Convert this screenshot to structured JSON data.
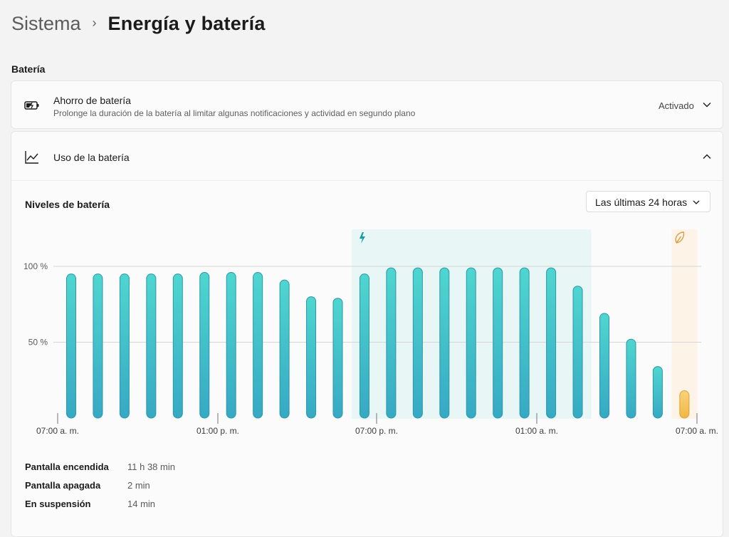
{
  "breadcrumb": {
    "parent": "Sistema",
    "separator": "›",
    "current": "Energía y batería"
  },
  "section": {
    "label": "Batería"
  },
  "battery_saver": {
    "title": "Ahorro de batería",
    "description": "Prolonge la duración de la batería al limitar algunas notificaciones y actividad en segundo plano",
    "status": "Activado",
    "icon": "battery-saver-icon",
    "expand_icon": "chevron-down-icon"
  },
  "battery_usage": {
    "title": "Uso de la batería",
    "icon": "chart-line-icon",
    "collapse_icon": "chevron-up-icon",
    "chart_title": "Niveles de batería",
    "range_selected": "Las últimas 24 horas"
  },
  "chart_data": {
    "type": "bar",
    "y_ticks": [
      {
        "value": 100,
        "label": "100 %"
      },
      {
        "value": 50,
        "label": "50 %"
      }
    ],
    "ylim": [
      0,
      100
    ],
    "x_tick_labels": [
      "07:00 a. m.",
      "01:00 p. m.",
      "07:00 p. m.",
      "01:00 a. m.",
      "07:00 a. m."
    ],
    "bar_count": 24,
    "values": [
      95,
      95,
      95,
      95,
      95,
      96,
      96,
      96,
      91,
      80,
      79,
      95,
      99,
      99,
      99,
      99,
      99,
      99,
      99,
      87,
      69,
      52,
      34,
      18
    ],
    "bar_color": "#3dc4c8",
    "saver_bar_color": "#f4c35a",
    "charging_region": {
      "start_bar": 11,
      "end_bar": 19,
      "icon": "lightning-icon",
      "color": "#e8f6f6"
    },
    "saver_region": {
      "start_bar": 23,
      "end_bar": 23,
      "icon": "leaf-icon",
      "color": "#fdf3e6"
    },
    "grid": true
  },
  "stats": [
    {
      "label": "Pantalla encendida",
      "value": "11 h 38 min"
    },
    {
      "label": "Pantalla apagada",
      "value": "2 min"
    },
    {
      "label": "En suspensión",
      "value": "14 min"
    }
  ]
}
